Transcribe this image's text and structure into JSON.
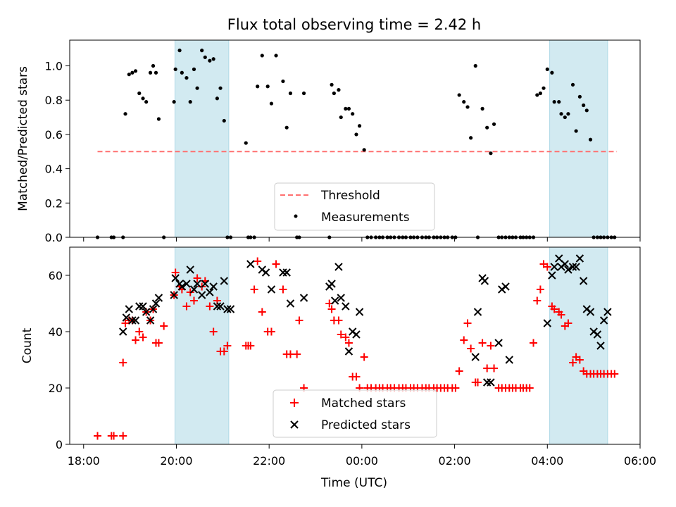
{
  "title": "Flux total observing time = 2.42 h",
  "colors": {
    "matched": "#ff0000",
    "predicted": "#000000",
    "threshold": "#ff7070",
    "shade": "#add8e6"
  },
  "legend_top": {
    "threshold": "Threshold",
    "measurements": "Measurements"
  },
  "legend_bottom": {
    "matched": "Matched stars",
    "predicted": "Predicted stars"
  },
  "chart_data": [
    {
      "type": "scatter",
      "ylabel": "Matched/Predicted stars",
      "ylim": [
        0,
        1.15
      ],
      "xlim_hours": [
        17.7,
        30.0
      ],
      "yticks": [
        "0.0",
        "0.2",
        "0.4",
        "0.6",
        "0.8",
        "1.0"
      ],
      "threshold": {
        "value": 0.5,
        "x_start_h": 18.3,
        "x_end_h": 29.5,
        "style": "dashed"
      },
      "shaded_intervals_h": [
        [
          19.97,
          21.13
        ],
        [
          28.05,
          29.3
        ]
      ],
      "series": [
        {
          "name": "Measurements",
          "x_h": [
            18.3,
            18.6,
            18.65,
            18.85,
            18.9,
            18.98,
            19.05,
            19.12,
            19.2,
            19.28,
            19.35,
            19.44,
            19.5,
            19.56,
            19.62,
            19.73,
            19.95,
            19.98,
            20.07,
            20.12,
            20.22,
            20.3,
            20.38,
            20.45,
            20.55,
            20.62,
            20.72,
            20.8,
            20.88,
            20.95,
            21.03,
            21.1,
            21.17,
            21.5,
            21.55,
            21.6,
            21.68,
            21.75,
            21.85,
            21.97,
            22.05,
            22.15,
            22.3,
            22.38,
            22.46,
            22.6,
            22.65,
            22.75,
            23.3,
            23.35,
            23.4,
            23.5,
            23.55,
            23.65,
            23.72,
            23.8,
            23.88,
            23.95,
            24.05,
            24.12,
            24.2,
            24.3,
            24.38,
            24.45,
            24.55,
            24.62,
            24.7,
            24.8,
            24.88,
            24.95,
            25.05,
            25.12,
            25.2,
            25.3,
            25.38,
            25.45,
            25.55,
            25.62,
            25.7,
            25.78,
            25.85,
            25.95,
            26.02,
            26.1,
            26.2,
            26.28,
            26.35,
            26.45,
            26.5,
            26.6,
            26.7,
            26.78,
            26.85,
            26.95,
            27.02,
            27.1,
            27.18,
            27.25,
            27.32,
            27.42,
            27.48,
            27.55,
            27.62,
            27.7,
            27.78,
            27.85,
            27.92,
            28.0,
            28.1,
            28.15,
            28.25,
            28.3,
            28.38,
            28.45,
            28.55,
            28.62,
            28.7,
            28.78,
            28.85,
            28.93,
            29.0,
            29.08,
            29.15,
            29.22,
            29.3,
            29.38,
            29.45
          ],
          "y": [
            0,
            0,
            0,
            0,
            0.72,
            0.95,
            0.96,
            0.97,
            0.84,
            0.81,
            0.79,
            0.96,
            1.0,
            0.96,
            0.69,
            0,
            0.79,
            0.98,
            1.09,
            0.96,
            0.93,
            0.79,
            0.98,
            0.87,
            1.09,
            1.05,
            1.03,
            1.04,
            0.81,
            0.87,
            0.68,
            0,
            0,
            0.55,
            0,
            0,
            0,
            0.88,
            1.06,
            0.88,
            0.78,
            1.06,
            0.91,
            0.64,
            0.84,
            0,
            0,
            0.84,
            0,
            0.89,
            0.84,
            0.86,
            0.7,
            0.75,
            0.75,
            0.72,
            0.6,
            0.65,
            0.51,
            0,
            0,
            0,
            0,
            0,
            0,
            0,
            0,
            0,
            0,
            0,
            0,
            0,
            0,
            0,
            0,
            0,
            0,
            0,
            0,
            0,
            0,
            0,
            0,
            0.83,
            0.79,
            0.76,
            0.58,
            1.0,
            0,
            0.75,
            0.64,
            0.49,
            0.66,
            0,
            0,
            0,
            0,
            0,
            0,
            0,
            0,
            0,
            0,
            0,
            0.83,
            0.84,
            0.87,
            0.98,
            0.96,
            0.79,
            0.79,
            0.72,
            0.7,
            0.72,
            0.89,
            0.62,
            0.82,
            0.77,
            0.74,
            0.57,
            0,
            0,
            0,
            0,
            0,
            0,
            0
          ]
        }
      ]
    },
    {
      "type": "scatter",
      "ylabel": "Count",
      "xlabel": "Time (UTC)",
      "ylim": [
        0,
        70
      ],
      "xlim_hours": [
        17.7,
        30.0
      ],
      "xticks": [
        {
          "h": 18,
          "label": "18:00"
        },
        {
          "h": 20,
          "label": "20:00"
        },
        {
          "h": 22,
          "label": "22:00"
        },
        {
          "h": 24,
          "label": "00:00"
        },
        {
          "h": 26,
          "label": "02:00"
        },
        {
          "h": 28,
          "label": "04:00"
        },
        {
          "h": 30,
          "label": "06:00"
        }
      ],
      "yticks": [
        "0",
        "20",
        "40",
        "60"
      ],
      "shaded_intervals_h": [
        [
          19.97,
          21.13
        ],
        [
          28.05,
          29.3
        ]
      ],
      "series": [
        {
          "name": "Matched stars",
          "marker": "plus",
          "x_h": [
            18.3,
            18.6,
            18.65,
            18.85,
            18.85,
            18.9,
            18.98,
            19.05,
            19.12,
            19.2,
            19.28,
            19.35,
            19.44,
            19.5,
            19.56,
            19.62,
            19.73,
            19.95,
            19.98,
            20.07,
            20.12,
            20.22,
            20.3,
            20.38,
            20.45,
            20.55,
            20.62,
            20.72,
            20.8,
            20.88,
            20.95,
            21.03,
            21.1,
            21.5,
            21.55,
            21.6,
            21.68,
            21.75,
            21.85,
            21.97,
            22.05,
            22.15,
            22.3,
            22.38,
            22.46,
            22.6,
            22.65,
            22.75,
            23.3,
            23.35,
            23.4,
            23.5,
            23.55,
            23.65,
            23.72,
            23.8,
            23.88,
            23.95,
            24.05,
            24.12,
            24.2,
            24.3,
            24.38,
            24.45,
            24.55,
            24.62,
            24.7,
            24.8,
            24.88,
            24.95,
            25.05,
            25.12,
            25.2,
            25.3,
            25.38,
            25.45,
            25.55,
            25.62,
            25.7,
            25.78,
            25.85,
            25.95,
            26.02,
            26.1,
            26.2,
            26.28,
            26.35,
            26.45,
            26.5,
            26.6,
            26.7,
            26.78,
            26.85,
            26.95,
            27.02,
            27.1,
            27.18,
            27.25,
            27.32,
            27.42,
            27.48,
            27.55,
            27.62,
            27.7,
            27.78,
            27.85,
            27.92,
            28.0,
            28.1,
            28.15,
            28.25,
            28.3,
            28.38,
            28.45,
            28.55,
            28.62,
            28.7,
            28.78,
            28.85,
            28.93,
            29.0,
            29.08,
            29.15,
            29.22,
            29.3,
            29.38,
            29.45
          ],
          "y": [
            3,
            3,
            3,
            3,
            29,
            43,
            44,
            44,
            37,
            40,
            38,
            47,
            44,
            48,
            36,
            36,
            42,
            53,
            61,
            56,
            55,
            49,
            54,
            51,
            59,
            56,
            58,
            49,
            40,
            51,
            33,
            33,
            35,
            35,
            35,
            35,
            55,
            65,
            47,
            40,
            40,
            64,
            55,
            32,
            32,
            32,
            44,
            20,
            50,
            48,
            44,
            44,
            39,
            38,
            36,
            24,
            24,
            20,
            31,
            20,
            20,
            20,
            20,
            20,
            20,
            20,
            20,
            20,
            20,
            20,
            20,
            20,
            20,
            20,
            20,
            20,
            20,
            20,
            20,
            20,
            20,
            20,
            20,
            26,
            37,
            43,
            34,
            22,
            22,
            36,
            27,
            35,
            27,
            20,
            20,
            20,
            20,
            20,
            20,
            20,
            20,
            20,
            20,
            36,
            51,
            55,
            64,
            63,
            49,
            48,
            47,
            46,
            42,
            43,
            29,
            31,
            30,
            26,
            25,
            25,
            25,
            25,
            25,
            25,
            25,
            25,
            25
          ],
          "_note": ""
        },
        {
          "name": "Predicted stars",
          "marker": "x",
          "x_h": [
            18.85,
            18.92,
            18.98,
            19.05,
            19.12,
            19.2,
            19.28,
            19.35,
            19.44,
            19.5,
            19.56,
            19.62,
            19.95,
            19.98,
            20.07,
            20.12,
            20.22,
            20.3,
            20.38,
            20.45,
            20.55,
            20.62,
            20.72,
            20.8,
            20.88,
            20.95,
            21.03,
            21.1,
            21.17,
            21.6,
            21.85,
            21.93,
            22.05,
            22.3,
            22.38,
            22.46,
            22.75,
            23.3,
            23.35,
            23.42,
            23.5,
            23.55,
            23.65,
            23.72,
            23.8,
            23.88,
            23.95,
            26.45,
            26.5,
            26.6,
            26.65,
            26.7,
            26.78,
            26.95,
            27.02,
            27.1,
            27.18,
            28.0,
            28.1,
            28.15,
            28.25,
            28.3,
            28.38,
            28.45,
            28.55,
            28.62,
            28.7,
            28.78,
            28.85,
            28.93,
            29.0,
            29.08,
            29.15,
            29.22,
            29.3
          ],
          "y": [
            40,
            45,
            48,
            44,
            44,
            49,
            49,
            47,
            44,
            48,
            50,
            52,
            53,
            59,
            57,
            56,
            57,
            62,
            55,
            57,
            53,
            57,
            54,
            56,
            49,
            49,
            58,
            48,
            48,
            64,
            62,
            61,
            55,
            61,
            61,
            50,
            52,
            56,
            57,
            51,
            63,
            52,
            49,
            33,
            40,
            39,
            47,
            31,
            47,
            59,
            58,
            22,
            22,
            36,
            55,
            56,
            30,
            43,
            60,
            63,
            66,
            63,
            64,
            62,
            63,
            63,
            66,
            58,
            48,
            47,
            40,
            39,
            35,
            44,
            47
          ]
        }
      ]
    }
  ]
}
